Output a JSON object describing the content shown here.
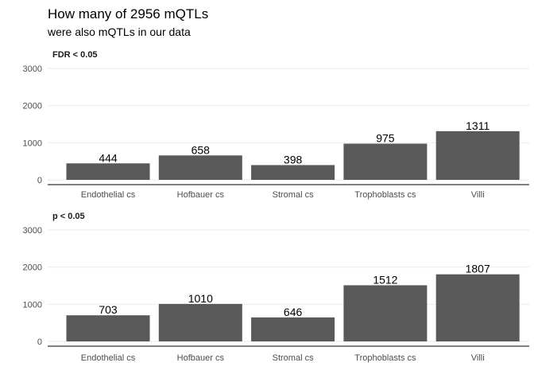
{
  "title": "How many of 2956 mQTLs",
  "subtitle": "were also mQTLs in our data",
  "colors": {
    "bar": "#595959",
    "grid": "#ebebeb"
  },
  "chart_data": [
    {
      "type": "bar",
      "panel_label": "FDR < 0.05",
      "categories": [
        "Endothelial cs",
        "Hofbauer cs",
        "Stromal cs",
        "Trophoblasts cs",
        "Villi"
      ],
      "values": [
        444,
        658,
        398,
        975,
        1311
      ],
      "ylim": [
        0,
        3000
      ],
      "yticks": [
        0,
        1000,
        2000,
        3000
      ],
      "grid": true
    },
    {
      "type": "bar",
      "panel_label": "p < 0.05",
      "categories": [
        "Endothelial cs",
        "Hofbauer cs",
        "Stromal cs",
        "Trophoblasts cs",
        "Villi"
      ],
      "values": [
        703,
        1010,
        646,
        1512,
        1807
      ],
      "ylim": [
        0,
        3000
      ],
      "yticks": [
        0,
        1000,
        2000,
        3000
      ],
      "grid": true
    }
  ]
}
